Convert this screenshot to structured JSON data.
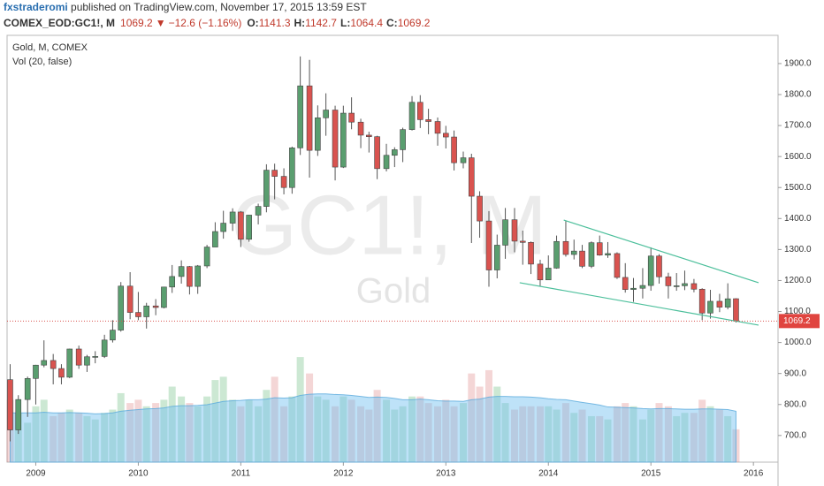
{
  "header": {
    "author": "fxstraderomi",
    "published": " published on TradingView.com, November 17, 2015 13:59 EST",
    "symbol": "COMEX_EOD:GC1!, M",
    "change": "−12.6 (−1.16%)",
    "ohlc_labels": [
      "O:",
      "H:",
      "L:",
      "C:"
    ]
  },
  "chart_data": {
    "type": "candlestick",
    "title": "Gold, M, COMEX",
    "subtitle": "Vol (20, false)",
    "watermark": [
      "GC1!, M",
      "Gold"
    ],
    "x": [
      2008.75,
      2008.83,
      2008.92,
      2009,
      2009.08,
      2009.17,
      2009.25,
      2009.33,
      2009.42,
      2009.5,
      2009.58,
      2009.67,
      2009.75,
      2009.83,
      2009.92,
      2010,
      2010.08,
      2010.17,
      2010.25,
      2010.33,
      2010.42,
      2010.5,
      2010.58,
      2010.67,
      2010.75,
      2010.83,
      2010.92,
      2011,
      2011.08,
      2011.17,
      2011.25,
      2011.33,
      2011.42,
      2011.5,
      2011.58,
      2011.67,
      2011.75,
      2011.83,
      2011.92,
      2012,
      2012.08,
      2012.17,
      2012.25,
      2012.33,
      2012.42,
      2012.5,
      2012.58,
      2012.67,
      2012.75,
      2012.83,
      2012.92,
      2013,
      2013.08,
      2013.17,
      2013.25,
      2013.33,
      2013.42,
      2013.5,
      2013.58,
      2013.67,
      2013.75,
      2013.83,
      2013.92,
      2014,
      2014.08,
      2014.17,
      2014.25,
      2014.33,
      2014.42,
      2014.5,
      2014.58,
      2014.67,
      2014.75,
      2014.83,
      2014.92,
      2015,
      2015.08,
      2015.17,
      2015.25,
      2015.33,
      2015.42,
      2015.5,
      2015.58,
      2015.67,
      2015.75,
      2015.83
    ],
    "open": [
      880,
      718,
      816,
      884,
      927,
      942,
      916,
      888,
      979,
      927,
      954,
      955,
      1008,
      1040,
      1182,
      1097,
      1083,
      1118,
      1113,
      1179,
      1213,
      1245,
      1181,
      1247,
      1308,
      1358,
      1385,
      1421,
      1333,
      1411,
      1439,
      1556,
      1536,
      1500,
      1628,
      1828,
      1620,
      1725,
      1750,
      1566,
      1740,
      1711,
      1669,
      1664,
      1561,
      1604,
      1622,
      1687,
      1775,
      1719,
      1713,
      1675,
      1663,
      1580,
      1596,
      1472,
      1392,
      1234,
      1314,
      1396,
      1327,
      1323,
      1253,
      1202,
      1240,
      1326,
      1284,
      1295,
      1246,
      1322,
      1282,
      1287,
      1210,
      1171,
      1175,
      1184,
      1279,
      1212,
      1183,
      1183,
      1190,
      1172,
      1095,
      1133,
      1114,
      1141.3
    ],
    "high": [
      930,
      830,
      890,
      928,
      1007,
      963,
      930,
      980,
      990,
      960,
      972,
      1025,
      1072,
      1195,
      1227,
      1163,
      1128,
      1140,
      1180,
      1250,
      1265,
      1247,
      1250,
      1315,
      1388,
      1425,
      1433,
      1424,
      1412,
      1448,
      1575,
      1577,
      1562,
      1632,
      1923,
      1912,
      1765,
      1804,
      1764,
      1764,
      1791,
      1722,
      1680,
      1667,
      1641,
      1630,
      1693,
      1795,
      1798,
      1754,
      1726,
      1699,
      1684,
      1616,
      1609,
      1488,
      1424,
      1348,
      1434,
      1434,
      1361,
      1326,
      1267,
      1281,
      1345,
      1392,
      1332,
      1315,
      1326,
      1345,
      1324,
      1291,
      1256,
      1208,
      1240,
      1307,
      1285,
      1225,
      1224,
      1232,
      1205,
      1175,
      1170,
      1157,
      1191,
      1142.7
    ],
    "low": [
      681,
      705,
      760,
      800,
      920,
      865,
      865,
      885,
      915,
      905,
      933,
      950,
      1000,
      1035,
      1075,
      1072,
      1045,
      1088,
      1110,
      1160,
      1190,
      1155,
      1157,
      1240,
      1315,
      1335,
      1360,
      1308,
      1325,
      1381,
      1420,
      1462,
      1478,
      1480,
      1605,
      1532,
      1602,
      1667,
      1523,
      1563,
      1688,
      1627,
      1613,
      1527,
      1552,
      1566,
      1582,
      1684,
      1692,
      1672,
      1635,
      1626,
      1555,
      1562,
      1321,
      1338,
      1180,
      1207,
      1270,
      1291,
      1251,
      1221,
      1182,
      1202,
      1238,
      1277,
      1268,
      1240,
      1240,
      1280,
      1273,
      1205,
      1161,
      1131,
      1142,
      1167,
      1190,
      1142,
      1167,
      1169,
      1162,
      1072,
      1077,
      1098,
      1107,
      1064.4
    ],
    "close": [
      718,
      816,
      884,
      927,
      942,
      916,
      888,
      979,
      927,
      954,
      955,
      1008,
      1040,
      1182,
      1097,
      1083,
      1118,
      1113,
      1179,
      1213,
      1245,
      1181,
      1247,
      1308,
      1358,
      1385,
      1421,
      1333,
      1411,
      1439,
      1556,
      1536,
      1500,
      1628,
      1828,
      1620,
      1725,
      1750,
      1566,
      1740,
      1711,
      1669,
      1664,
      1561,
      1604,
      1622,
      1687,
      1775,
      1719,
      1713,
      1675,
      1663,
      1580,
      1596,
      1472,
      1392,
      1234,
      1314,
      1396,
      1327,
      1323,
      1253,
      1202,
      1240,
      1326,
      1284,
      1295,
      1246,
      1322,
      1282,
      1287,
      1210,
      1171,
      1175,
      1184,
      1279,
      1212,
      1183,
      1183,
      1190,
      1172,
      1095,
      1133,
      1114,
      1141,
      1069.2
    ],
    "volume": [
      190,
      150,
      120,
      170,
      190,
      140,
      150,
      160,
      150,
      140,
      130,
      150,
      160,
      210,
      180,
      190,
      170,
      180,
      190,
      230,
      200,
      180,
      170,
      200,
      250,
      260,
      190,
      170,
      190,
      170,
      220,
      260,
      170,
      200,
      320,
      270,
      200,
      190,
      170,
      200,
      190,
      170,
      160,
      220,
      190,
      160,
      170,
      200,
      200,
      180,
      170,
      190,
      170,
      180,
      270,
      230,
      280,
      230,
      180,
      160,
      170,
      170,
      170,
      170,
      160,
      180,
      150,
      160,
      140,
      140,
      130,
      170,
      180,
      170,
      130,
      160,
      180,
      170,
      140,
      150,
      150,
      190,
      170,
      160,
      140,
      100
    ],
    "volume_ma": [
      150,
      150,
      150,
      150,
      152,
      150,
      150,
      151,
      150,
      149,
      147,
      148,
      150,
      155,
      158,
      160,
      162,
      163,
      165,
      170,
      172,
      172,
      173,
      175,
      180,
      185,
      187,
      188,
      190,
      190,
      192,
      196,
      195,
      196,
      203,
      207,
      208,
      208,
      206,
      205,
      203,
      200,
      197,
      198,
      197,
      194,
      190,
      190,
      192,
      190,
      187,
      186,
      186,
      185,
      190,
      192,
      198,
      200,
      200,
      199,
      199,
      198,
      196,
      193,
      191,
      190,
      186,
      182,
      178,
      174,
      168,
      167,
      166,
      165,
      163,
      162,
      163,
      163,
      162,
      161,
      161,
      162,
      162,
      161,
      160,
      155
    ],
    "vlim": [
      0,
      600
    ],
    "up_color": "#5a9e6f",
    "down_color": "#d9534f",
    "volume_up_color": "rgba(110,190,130,0.35)",
    "volume_down_color": "rgba(220,120,120,0.3)",
    "volume_ma_color": "rgba(110,190,240,0.45)",
    "trendlines": [
      {
        "x": [
          2014.15,
          2016.05
        ],
        "y": [
          1395,
          1193
        ]
      },
      {
        "x": [
          2013.72,
          2016.05
        ],
        "y": [
          1193,
          1056
        ]
      }
    ],
    "trendline_color": "#4cbf9b",
    "xlim": [
      2008.72,
      2016.24
    ],
    "ylim": [
      614,
      1991
    ],
    "xticks": [
      2009,
      2010,
      2011,
      2012,
      2013,
      2014,
      2015,
      2016
    ],
    "yticks": [
      {
        "value": 700,
        "label": "700.0"
      },
      {
        "value": 800,
        "label": "800.0"
      },
      {
        "value": 900,
        "label": "900.0"
      },
      {
        "value": 1000,
        "label": "1000.0"
      },
      {
        "value": 1100,
        "label": "1100.0"
      },
      {
        "value": 1200,
        "label": "1200.0"
      },
      {
        "value": 1300,
        "label": "1300.0"
      },
      {
        "value": 1400,
        "label": "1400.0"
      },
      {
        "value": 1500,
        "label": "1500.0"
      },
      {
        "value": 1600,
        "label": "1600.0"
      },
      {
        "value": 1700,
        "label": "1700.0"
      },
      {
        "value": 1800,
        "label": "1800.0"
      },
      {
        "value": 1900,
        "label": "1900.0"
      }
    ],
    "grid": false
  }
}
